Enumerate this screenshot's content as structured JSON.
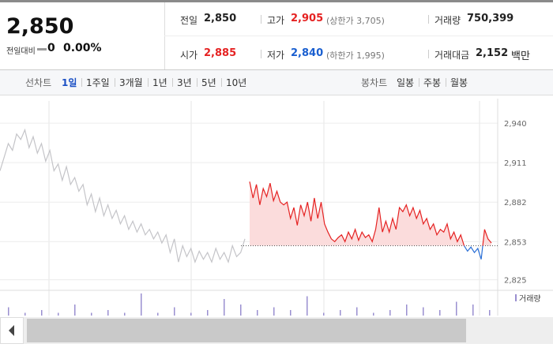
{
  "header": {
    "price": "2,850",
    "change_label": "전일대비",
    "change": "0",
    "change_pct": "0.00%"
  },
  "stats": [
    {
      "label": "전일",
      "value": "2,850",
      "value_color": "#222222"
    },
    {
      "label": "고가",
      "value": "2,905",
      "extra": "(상한가 3,705)",
      "value_color": "#e52222"
    },
    {
      "label": "거래량",
      "value": "750,399",
      "value_color": "#222222"
    },
    {
      "label": "시가",
      "value": "2,885",
      "value_color": "#e52222"
    },
    {
      "label": "저가",
      "value": "2,840",
      "extra": "(하한가 1,995)",
      "value_color": "#1a5fd0"
    },
    {
      "label": "거래대금",
      "value": "2,152",
      "unit": "백만",
      "value_color": "#222222"
    }
  ],
  "tabs": {
    "line_label": "선차트",
    "line_items": [
      "1일",
      "1주일",
      "3개월",
      "1년",
      "3년",
      "5년",
      "10년"
    ],
    "selected": 0,
    "candle_label": "봉차트",
    "candle_items": [
      "일봉",
      "주봉",
      "월봉"
    ]
  },
  "chart_data": {
    "type": "line",
    "ylim": [
      2819,
      2958
    ],
    "yticks": [
      {
        "value": 2940,
        "label": "2,940"
      },
      {
        "value": 2911,
        "label": "2,911"
      },
      {
        "value": 2882,
        "label": "2,882"
      },
      {
        "value": 2853,
        "label": "2,853"
      },
      {
        "value": 2825,
        "label": "2,825"
      }
    ],
    "grid": true,
    "baseline": 2850,
    "series": [
      {
        "color": "#c4c4c8",
        "values": [
          2905,
          2915,
          2925,
          2920,
          2932,
          2928,
          2935,
          2922,
          2930,
          2918,
          2925,
          2912,
          2920,
          2905,
          2910,
          2898,
          2908,
          2895,
          2900,
          2890,
          2895,
          2880,
          2888,
          2875,
          2885,
          2872,
          2880,
          2870,
          2876,
          2866,
          2872,
          2862,
          2868,
          2860,
          2866,
          2858,
          2862,
          2855,
          2860,
          2852,
          2858,
          2845,
          2855,
          2838,
          2850,
          2842,
          2848,
          2838,
          2846,
          2840,
          2845,
          2838,
          2848,
          2840,
          2845,
          2838,
          2850,
          2842,
          2845,
          2855
        ]
      },
      {
        "color": "#e52222",
        "below_color": "#2a6fd6",
        "fill": "#fbdcdc",
        "values": [
          2897,
          2885,
          2895,
          2880,
          2892,
          2886,
          2896,
          2883,
          2890,
          2882,
          2880,
          2882,
          2870,
          2878,
          2865,
          2880,
          2872,
          2882,
          2868,
          2885,
          2870,
          2882,
          2866,
          2860,
          2855,
          2853,
          2856,
          2858,
          2853,
          2860,
          2855,
          2862,
          2854,
          2860,
          2856,
          2858,
          2853,
          2862,
          2878,
          2860,
          2868,
          2860,
          2870,
          2862,
          2878,
          2875,
          2880,
          2872,
          2878,
          2870,
          2876,
          2866,
          2870,
          2862,
          2866,
          2858,
          2862,
          2860,
          2866,
          2855,
          2860,
          2853,
          2858,
          2850,
          2846,
          2849,
          2845,
          2848,
          2840,
          2862,
          2855,
          2852
        ]
      }
    ],
    "volume": {
      "label": "거래량",
      "color": "#9a8fd0",
      "values": [
        3,
        1,
        2,
        1,
        4,
        1,
        2,
        1,
        8,
        1,
        3,
        1,
        2,
        6,
        4,
        2,
        3,
        2,
        7,
        1,
        2,
        3,
        1,
        2,
        4,
        3,
        2,
        5,
        4,
        2
      ]
    }
  }
}
